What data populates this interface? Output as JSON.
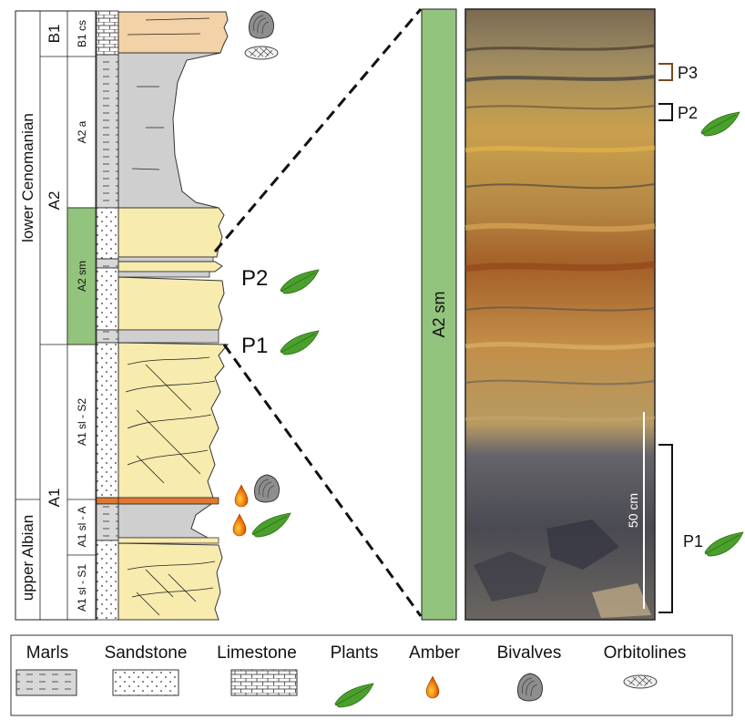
{
  "stages": [
    {
      "label": "lower Cenomanian"
    },
    {
      "label": "upper Albian"
    }
  ],
  "formations": [
    {
      "label": "B1"
    },
    {
      "label": "A2"
    },
    {
      "label": "A1"
    }
  ],
  "members": [
    {
      "label": "B1 cs"
    },
    {
      "label": "A2 a"
    },
    {
      "label": "A2 sm",
      "color": "#93c47d"
    },
    {
      "label": "A1 sl - S2"
    },
    {
      "label": "A1 sl - A"
    },
    {
      "label": "A1 sl - S1"
    }
  ],
  "column_levels": [
    {
      "label": "P2"
    },
    {
      "label": "P1"
    }
  ],
  "photo": {
    "unit_label": "A2 sm",
    "unit_color": "#93c47d",
    "scale_label": "50 cm",
    "markers": [
      {
        "label": "P3",
        "color": "#7a4a1e"
      },
      {
        "label": "P2",
        "color": "#111111"
      },
      {
        "label": "P1",
        "color": "#111111"
      }
    ]
  },
  "legend": {
    "items": [
      {
        "label": "Marls",
        "icon": "marls-pattern-icon"
      },
      {
        "label": "Sandstone",
        "icon": "sandstone-pattern-icon"
      },
      {
        "label": "Limestone",
        "icon": "limestone-pattern-icon"
      },
      {
        "label": "Plants",
        "icon": "leaf-icon"
      },
      {
        "label": "Amber",
        "icon": "amber-drop-icon"
      },
      {
        "label": "Bivalves",
        "icon": "bivalve-icon"
      },
      {
        "label": "Orbitolines",
        "icon": "orbitoline-icon"
      }
    ]
  },
  "colors": {
    "sandstone_fill": "#f8ebae",
    "marl_fill": "#cfcfcf",
    "limestone_fill": "#f2d2a6",
    "leaf": "#4aa02c",
    "amber": "#f07a10",
    "amber_bed": "#e07830"
  }
}
